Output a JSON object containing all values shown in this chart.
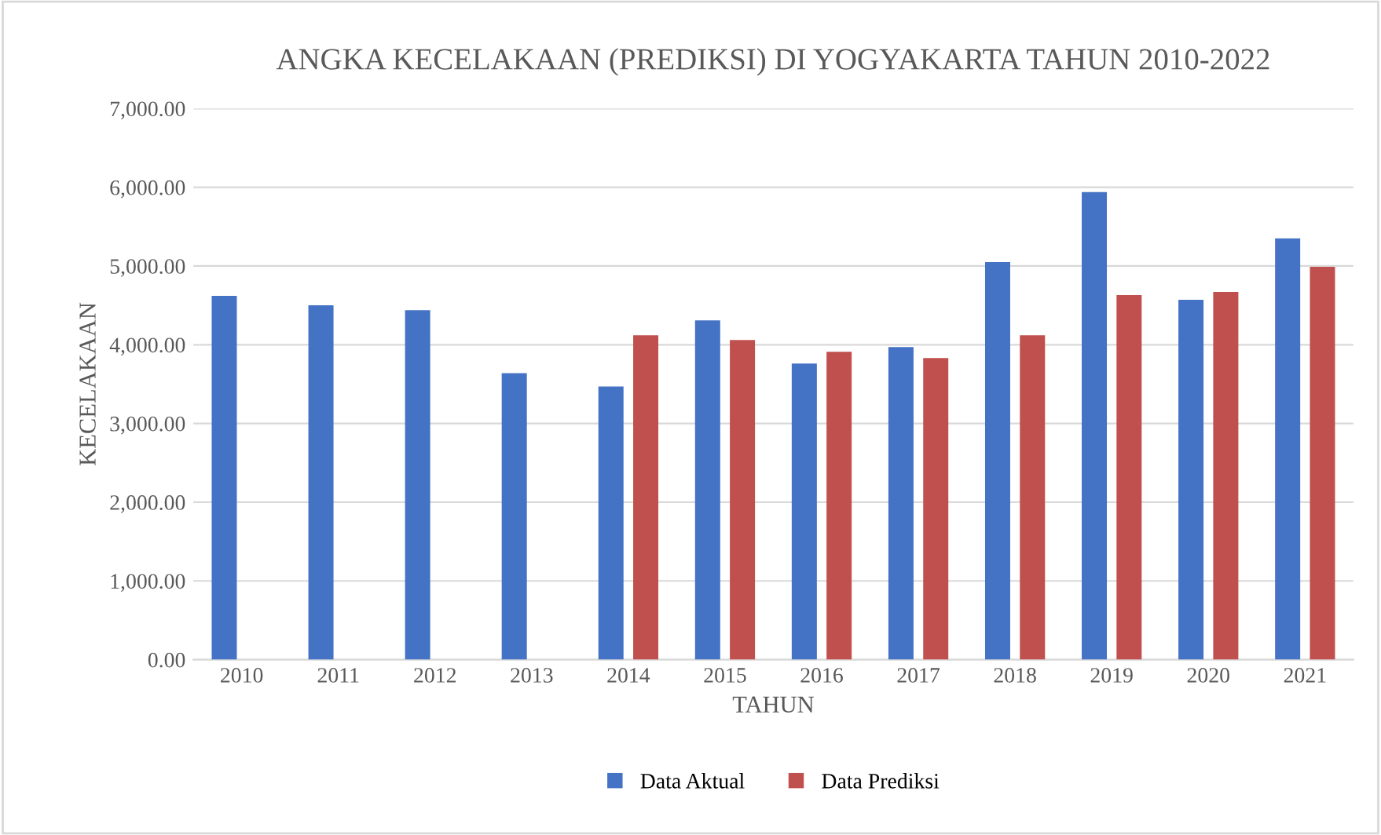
{
  "chart_data": {
    "type": "bar",
    "title": "ANGKA KECELAKAAN (PREDIKSI) DI YOGYAKARTA TAHUN 2010-2022",
    "xlabel": "TAHUN",
    "ylabel": "KECELAKAAN",
    "categories": [
      "2010",
      "2011",
      "2012",
      "2013",
      "2014",
      "2015",
      "2016",
      "2017",
      "2018",
      "2019",
      "2020",
      "2021"
    ],
    "series": [
      {
        "name": "Data Aktual",
        "color": "#4472c4",
        "values": [
          4620,
          4500,
          4440,
          3640,
          3470,
          4310,
          3760,
          3970,
          5050,
          5940,
          4570,
          5350
        ]
      },
      {
        "name": "Data Prediksi",
        "color": "#c0504d",
        "values": [
          null,
          null,
          null,
          null,
          4120,
          4060,
          3910,
          3830,
          4120,
          4630,
          4670,
          4990
        ]
      }
    ],
    "ylim": [
      0,
      7000
    ],
    "yticks": [
      {
        "value": 0,
        "label": "0.00"
      },
      {
        "value": 1000,
        "label": "1,000.00"
      },
      {
        "value": 2000,
        "label": "2,000.00"
      },
      {
        "value": 3000,
        "label": "3,000.00"
      },
      {
        "value": 4000,
        "label": "4,000.00"
      },
      {
        "value": 5000,
        "label": "5,000.00"
      },
      {
        "value": 6000,
        "label": "6,000.00"
      },
      {
        "value": 7000,
        "label": "7,000.00"
      }
    ],
    "grid": "y",
    "legend": "bottom"
  }
}
